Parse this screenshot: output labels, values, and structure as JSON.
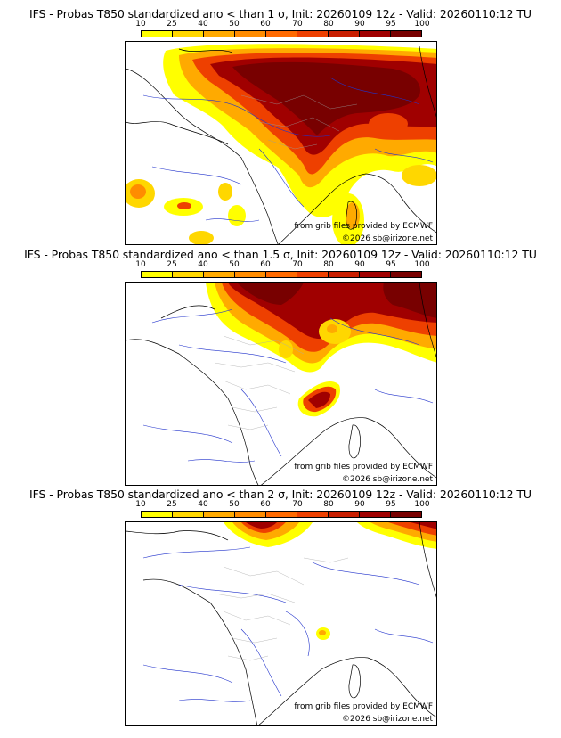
{
  "colorbar": {
    "ticks": [
      "10",
      "25",
      "40",
      "50",
      "60",
      "70",
      "80",
      "90",
      "95",
      "100"
    ],
    "colors": [
      "#ffff00",
      "#ffd700",
      "#ffaa00",
      "#ff8c00",
      "#ff6a00",
      "#ee4000",
      "#c81e00",
      "#a00000",
      "#780000"
    ]
  },
  "panels": [
    {
      "title": "IFS - Probas T850  standardized ano < than 1 σ, Init: 20260109 12z - Valid: 20260110:12 TU",
      "credit_line1": "from grib files provided by ECMWF",
      "credit_line2": "©2026 sb@irizone.net"
    },
    {
      "title": "IFS - Probas T850  standardized ano < than 1.5 σ, Init: 20260109 12z - Valid: 20260110:12 TU",
      "credit_line1": "from grib files provided by ECMWF",
      "credit_line2": "©2026 sb@irizone.net"
    },
    {
      "title": "IFS - Probas T850  standardized ano < than 2 σ, Init: 20260109 12z - Valid: 20260110:12 TU",
      "credit_line1": "from grib files provided by ECMWF",
      "credit_line2": "©2026 sb@irizone.net"
    }
  ]
}
